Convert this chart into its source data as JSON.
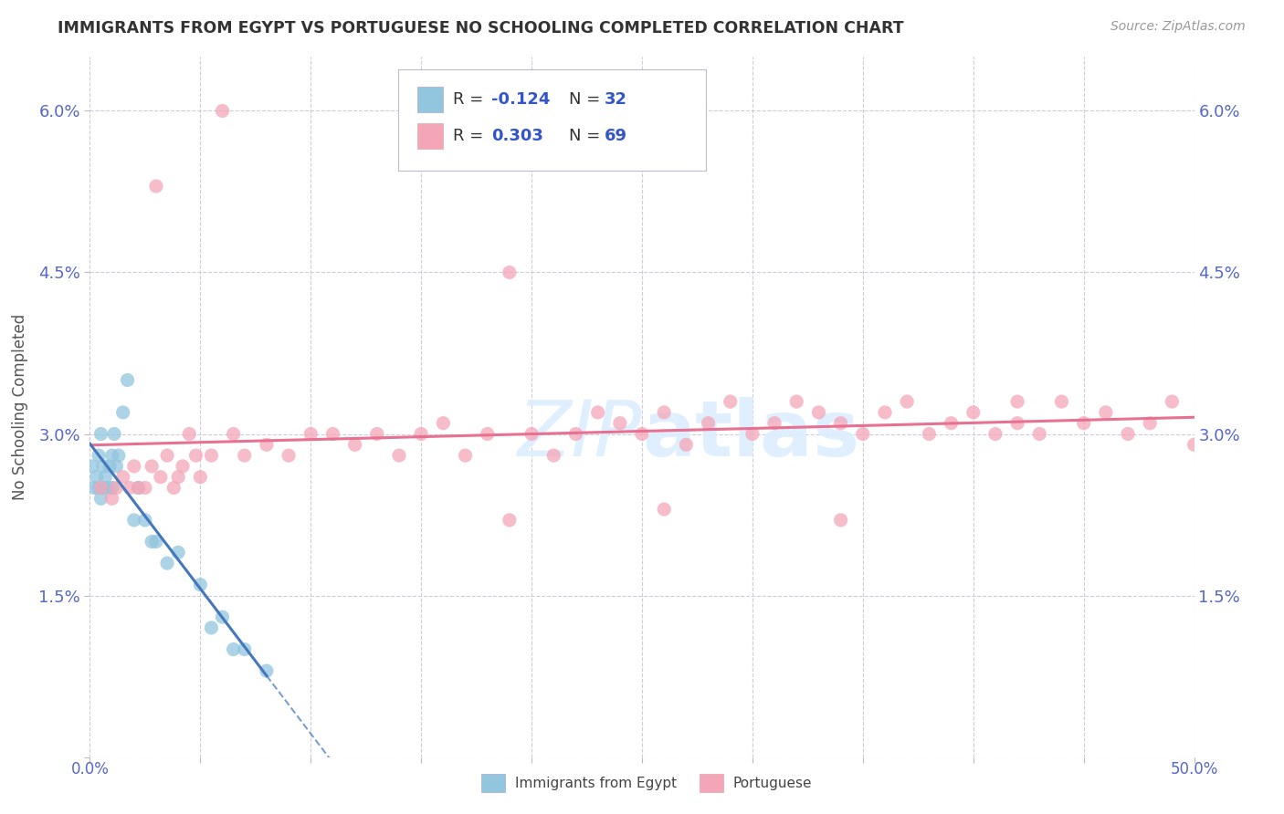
{
  "title": "IMMIGRANTS FROM EGYPT VS PORTUGUESE NO SCHOOLING COMPLETED CORRELATION CHART",
  "source": "Source: ZipAtlas.com",
  "ylabel": "No Schooling Completed",
  "xmin": 0.0,
  "xmax": 0.5,
  "ymin": 0.0,
  "ymax": 0.065,
  "ytick_vals": [
    0.0,
    0.015,
    0.03,
    0.045,
    0.06
  ],
  "ytick_labels": [
    "",
    "1.5%",
    "3.0%",
    "4.5%",
    "6.0%"
  ],
  "color_egypt": "#92C5DE",
  "color_portuguese": "#F4A6B8",
  "trendline_egypt_color": "#4477BB",
  "trendline_portuguese_color": "#E87090",
  "background_color": "#ffffff",
  "grid_color": "#ccccdd",
  "watermark_color": "#ddeeff",
  "egypt_x": [
    0.001,
    0.002,
    0.003,
    0.004,
    0.004,
    0.005,
    0.005,
    0.006,
    0.006,
    0.007,
    0.008,
    0.009,
    0.01,
    0.01,
    0.011,
    0.012,
    0.013,
    0.015,
    0.017,
    0.02,
    0.022,
    0.025,
    0.028,
    0.03,
    0.035,
    0.04,
    0.05,
    0.055,
    0.06,
    0.065,
    0.07,
    0.08
  ],
  "egypt_y": [
    0.027,
    0.025,
    0.026,
    0.025,
    0.028,
    0.024,
    0.03,
    0.025,
    0.027,
    0.026,
    0.025,
    0.027,
    0.028,
    0.025,
    0.03,
    0.027,
    0.028,
    0.032,
    0.035,
    0.022,
    0.025,
    0.022,
    0.02,
    0.02,
    0.018,
    0.019,
    0.016,
    0.012,
    0.013,
    0.01,
    0.01,
    0.008
  ],
  "portuguese_x": [
    0.005,
    0.01,
    0.012,
    0.015,
    0.018,
    0.02,
    0.022,
    0.025,
    0.028,
    0.03,
    0.032,
    0.035,
    0.038,
    0.04,
    0.042,
    0.045,
    0.048,
    0.05,
    0.055,
    0.06,
    0.065,
    0.07,
    0.08,
    0.09,
    0.1,
    0.11,
    0.12,
    0.13,
    0.14,
    0.15,
    0.16,
    0.17,
    0.18,
    0.19,
    0.2,
    0.21,
    0.22,
    0.23,
    0.24,
    0.25,
    0.26,
    0.27,
    0.28,
    0.29,
    0.3,
    0.31,
    0.32,
    0.33,
    0.34,
    0.35,
    0.36,
    0.37,
    0.38,
    0.39,
    0.4,
    0.41,
    0.42,
    0.43,
    0.44,
    0.45,
    0.46,
    0.47,
    0.48,
    0.49,
    0.5,
    0.34,
    0.26,
    0.19,
    0.42
  ],
  "portuguese_y": [
    0.025,
    0.024,
    0.025,
    0.026,
    0.025,
    0.027,
    0.025,
    0.025,
    0.027,
    0.053,
    0.026,
    0.028,
    0.025,
    0.026,
    0.027,
    0.03,
    0.028,
    0.026,
    0.028,
    0.06,
    0.03,
    0.028,
    0.029,
    0.028,
    0.03,
    0.03,
    0.029,
    0.03,
    0.028,
    0.03,
    0.031,
    0.028,
    0.03,
    0.045,
    0.03,
    0.028,
    0.03,
    0.032,
    0.031,
    0.03,
    0.032,
    0.029,
    0.031,
    0.033,
    0.03,
    0.031,
    0.033,
    0.032,
    0.031,
    0.03,
    0.032,
    0.033,
    0.03,
    0.031,
    0.032,
    0.03,
    0.031,
    0.03,
    0.033,
    0.031,
    0.032,
    0.03,
    0.031,
    0.033,
    0.029,
    0.022,
    0.023,
    0.022,
    0.033
  ]
}
